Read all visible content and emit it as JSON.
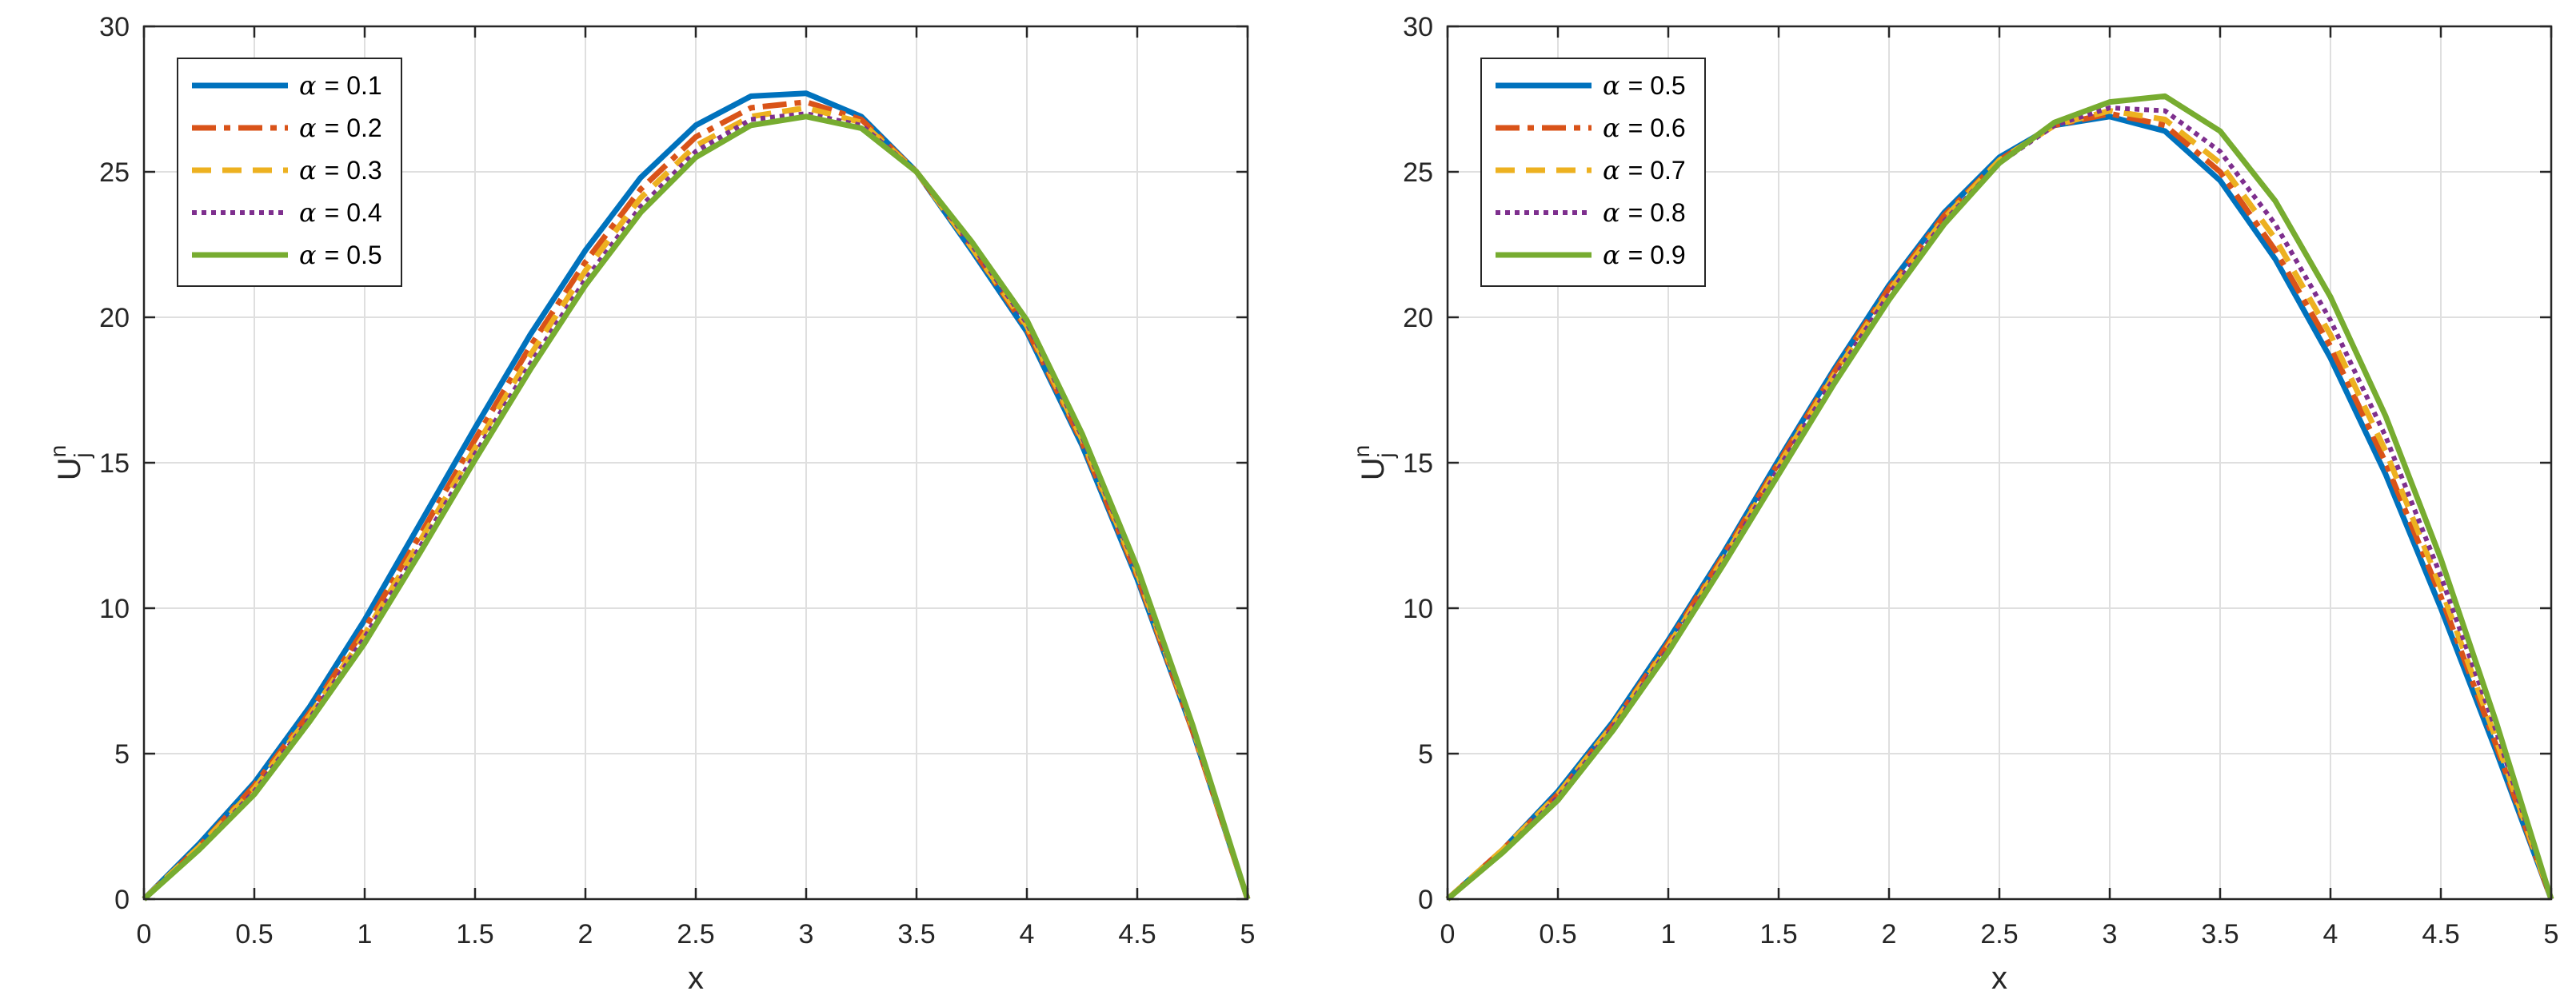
{
  "chart_data": [
    {
      "type": "line",
      "title": "",
      "xlabel": "x",
      "ylabel": "U",
      "ylabel_superscript": "n",
      "ylabel_subscript": "j",
      "xlim": [
        0,
        5
      ],
      "ylim": [
        0,
        30
      ],
      "xticks": [
        0,
        0.5,
        1,
        1.5,
        2,
        2.5,
        3,
        3.5,
        4,
        4.5,
        5
      ],
      "xtick_labels": [
        "0",
        "0.5",
        "1",
        "1.5",
        "2",
        "2.5",
        "3",
        "3.5",
        "4",
        "4.5",
        "5"
      ],
      "yticks": [
        0,
        5,
        10,
        15,
        20,
        25,
        30
      ],
      "ytick_labels": [
        "0",
        "5",
        "10",
        "15",
        "20",
        "25",
        "30"
      ],
      "grid": true,
      "legend_position": "top-left",
      "x": [
        0,
        0.25,
        0.5,
        0.75,
        1,
        1.25,
        1.5,
        1.75,
        2,
        2.25,
        2.5,
        2.75,
        3,
        3.25,
        3.5,
        3.75,
        4,
        4.25,
        4.5,
        4.75,
        5
      ],
      "series": [
        {
          "name": "α = 0.1",
          "alpha_symbol": "α",
          "label_suffix": "= 0.1",
          "color": "#0072BD",
          "dash": "solid",
          "values": [
            0,
            1.9,
            4.0,
            6.6,
            9.6,
            12.9,
            16.2,
            19.4,
            22.3,
            24.8,
            26.6,
            27.6,
            27.7,
            26.9,
            25.0,
            22.3,
            19.5,
            15.6,
            11.0,
            5.8,
            0
          ]
        },
        {
          "name": "α = 0.2",
          "alpha_symbol": "α",
          "label_suffix": "= 0.2",
          "color": "#D95319",
          "dash": "dashdot",
          "values": [
            0,
            1.8,
            3.9,
            6.4,
            9.3,
            12.5,
            15.8,
            19.0,
            21.9,
            24.4,
            26.2,
            27.2,
            27.4,
            26.8,
            25.0,
            22.4,
            19.6,
            15.7,
            11.1,
            5.8,
            0
          ]
        },
        {
          "name": "α = 0.3",
          "alpha_symbol": "α",
          "label_suffix": "= 0.3",
          "color": "#EDB120",
          "dash": "dashed",
          "values": [
            0,
            1.8,
            3.8,
            6.3,
            9.1,
            12.3,
            15.5,
            18.7,
            21.6,
            24.1,
            25.9,
            26.9,
            27.2,
            26.7,
            25.0,
            22.4,
            19.7,
            15.8,
            11.2,
            5.9,
            0
          ]
        },
        {
          "name": "α = 0.4",
          "alpha_symbol": "α",
          "label_suffix": "= 0.4",
          "color": "#7E2F8E",
          "dash": "dotted",
          "values": [
            0,
            1.7,
            3.7,
            6.2,
            9.0,
            12.1,
            15.3,
            18.4,
            21.3,
            23.8,
            25.7,
            26.8,
            27.0,
            26.6,
            25.0,
            22.5,
            19.8,
            15.9,
            11.3,
            5.9,
            0
          ]
        },
        {
          "name": "α = 0.5",
          "alpha_symbol": "α",
          "label_suffix": "= 0.5",
          "color": "#77AC30",
          "dash": "solid",
          "values": [
            0,
            1.7,
            3.6,
            6.1,
            8.8,
            11.9,
            15.1,
            18.2,
            21.1,
            23.6,
            25.5,
            26.6,
            26.9,
            26.5,
            25.0,
            22.6,
            19.9,
            16.0,
            11.4,
            6.0,
            0
          ]
        }
      ]
    },
    {
      "type": "line",
      "title": "",
      "xlabel": "x",
      "ylabel": "U",
      "ylabel_superscript": "n",
      "ylabel_subscript": "j",
      "xlim": [
        0,
        5
      ],
      "ylim": [
        0,
        30
      ],
      "xticks": [
        0,
        0.5,
        1,
        1.5,
        2,
        2.5,
        3,
        3.5,
        4,
        4.5,
        5
      ],
      "xtick_labels": [
        "0",
        "0.5",
        "1",
        "1.5",
        "2",
        "2.5",
        "3",
        "3.5",
        "4",
        "4.5",
        "5"
      ],
      "yticks": [
        0,
        5,
        10,
        15,
        20,
        25,
        30
      ],
      "ytick_labels": [
        "0",
        "5",
        "10",
        "15",
        "20",
        "25",
        "30"
      ],
      "grid": true,
      "legend_position": "top-left",
      "x": [
        0,
        0.25,
        0.5,
        0.75,
        1,
        1.25,
        1.5,
        1.75,
        2,
        2.25,
        2.5,
        2.75,
        3,
        3.25,
        3.5,
        3.75,
        4,
        4.25,
        4.5,
        4.75,
        5
      ],
      "series": [
        {
          "name": "α = 0.5",
          "alpha_symbol": "α",
          "label_suffix": "= 0.5",
          "color": "#0072BD",
          "dash": "solid",
          "values": [
            0,
            1.7,
            3.7,
            6.1,
            8.9,
            11.9,
            15.1,
            18.2,
            21.1,
            23.6,
            25.5,
            26.6,
            26.9,
            26.4,
            24.7,
            22.0,
            18.6,
            14.6,
            10.0,
            5.1,
            0
          ]
        },
        {
          "name": "α = 0.6",
          "alpha_symbol": "α",
          "label_suffix": "= 0.6",
          "color": "#D95319",
          "dash": "dashdot",
          "values": [
            0,
            1.7,
            3.6,
            6.0,
            8.8,
            11.8,
            15.0,
            18.1,
            21.0,
            23.5,
            25.4,
            26.6,
            27.0,
            26.6,
            25.0,
            22.3,
            19.0,
            15.0,
            10.4,
            5.3,
            0
          ]
        },
        {
          "name": "α = 0.7",
          "alpha_symbol": "α",
          "label_suffix": "= 0.7",
          "color": "#EDB120",
          "dash": "dashed",
          "values": [
            0,
            1.7,
            3.6,
            6.0,
            8.7,
            11.7,
            14.9,
            18.0,
            20.9,
            23.4,
            25.4,
            26.6,
            27.1,
            26.8,
            25.3,
            22.7,
            19.4,
            15.4,
            10.7,
            5.5,
            0
          ]
        },
        {
          "name": "α = 0.8",
          "alpha_symbol": "α",
          "label_suffix": "= 0.8",
          "color": "#7E2F8E",
          "dash": "dotted",
          "values": [
            0,
            1.6,
            3.5,
            5.9,
            8.6,
            11.6,
            14.8,
            17.9,
            20.8,
            23.3,
            25.3,
            26.6,
            27.2,
            27.1,
            25.7,
            23.2,
            19.9,
            15.9,
            11.1,
            5.8,
            0
          ]
        },
        {
          "name": "α = 0.9",
          "alpha_symbol": "α",
          "label_suffix": "= 0.9",
          "color": "#77AC30",
          "dash": "solid",
          "values": [
            0,
            1.6,
            3.4,
            5.8,
            8.5,
            11.5,
            14.6,
            17.7,
            20.6,
            23.2,
            25.3,
            26.7,
            27.4,
            27.6,
            26.4,
            24.0,
            20.7,
            16.6,
            11.7,
            6.1,
            0
          ]
        }
      ]
    }
  ]
}
